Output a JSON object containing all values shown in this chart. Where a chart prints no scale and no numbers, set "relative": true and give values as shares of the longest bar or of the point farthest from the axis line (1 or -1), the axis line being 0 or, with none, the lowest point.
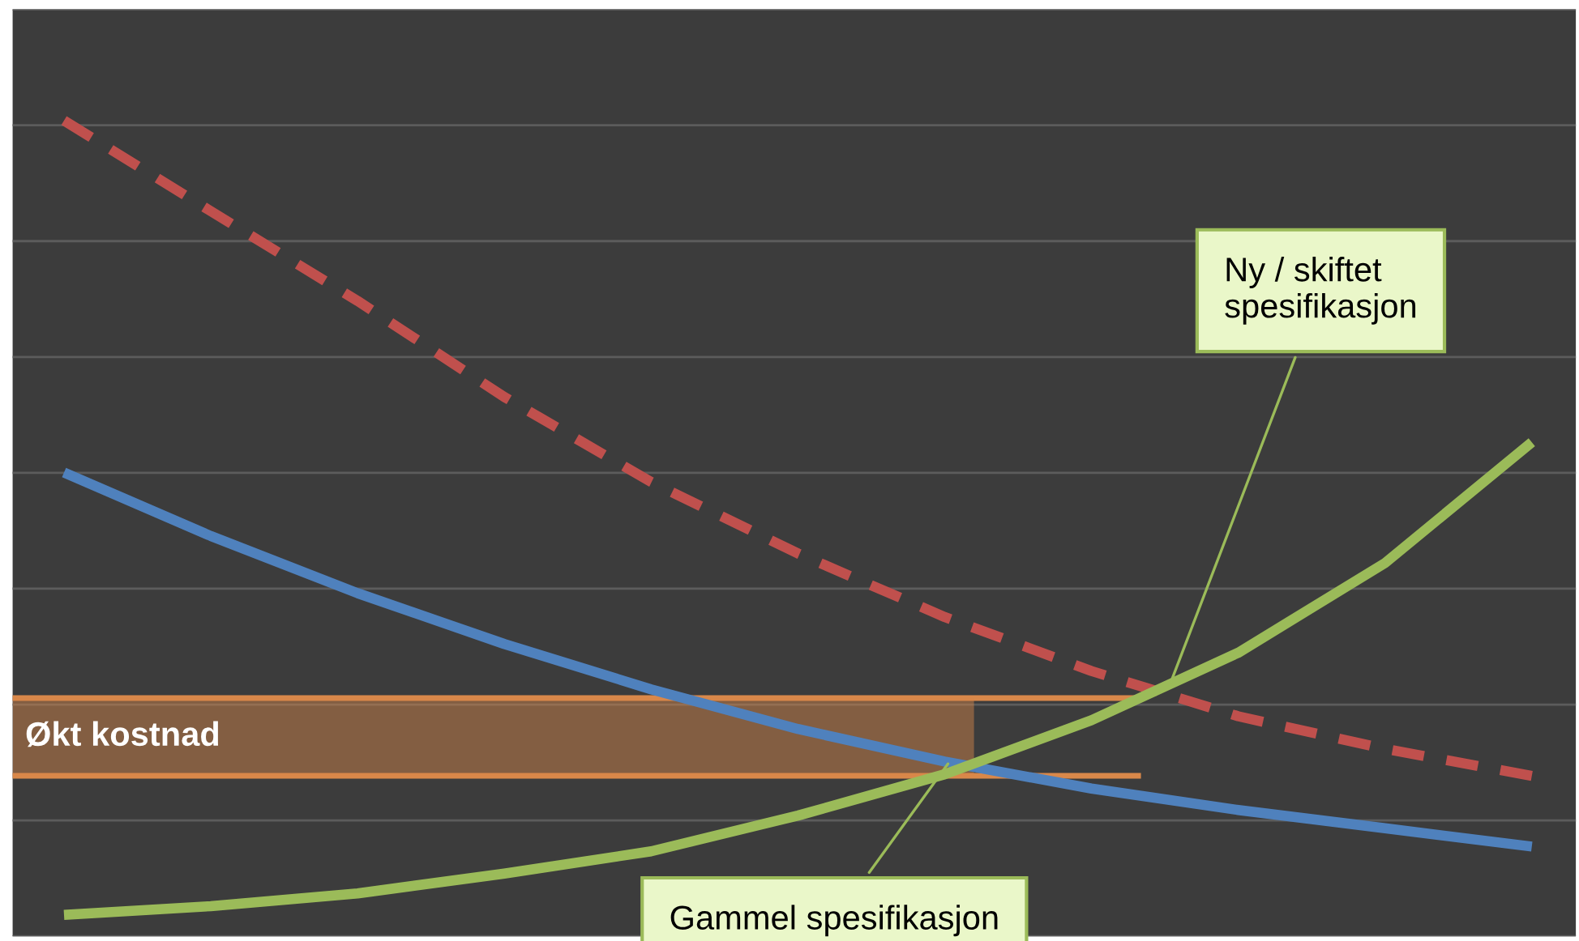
{
  "chart_data": {
    "type": "line",
    "relative": true,
    "grid": "y",
    "categories": [
      null,
      null,
      null,
      null,
      null,
      null,
      null,
      null,
      null,
      null,
      null
    ],
    "series": [
      {
        "color": "#c0504d",
        "line_style": "dashed",
        "values": [
          1,
          0.886,
          0.773,
          0.652,
          0.545,
          0.455,
          0.375,
          0.307,
          0.25,
          0.209,
          0.175
        ]
      },
      {
        "color": "#4f81bd",
        "line_style": "solid",
        "values": [
          0.557,
          0.477,
          0.405,
          0.341,
          0.284,
          0.234,
          0.193,
          0.159,
          0.132,
          0.109,
          0.086
        ]
      },
      {
        "color": "#9bbb59",
        "line_style": "solid",
        "values": [
          0,
          0.011,
          0.027,
          0.052,
          0.08,
          0.125,
          0.177,
          0.245,
          0.33,
          0.443,
          0.595
        ]
      }
    ],
    "bands": [
      {
        "axis": "y",
        "from": 0.175,
        "to": 0.273,
        "label": "Økt kostnad",
        "color": "#d9884a"
      }
    ],
    "annotations": [
      "Ny / skiftet spesifikasjon",
      "Gammel spesifikasjon"
    ]
  }
}
